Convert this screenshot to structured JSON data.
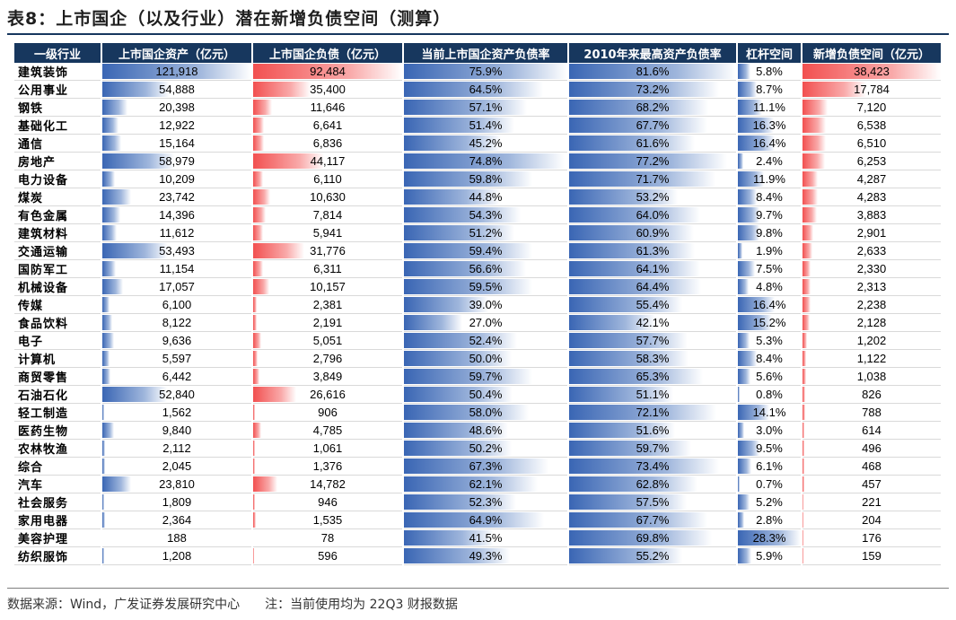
{
  "title": "表8：上市国企（以及行业）潜在新增负债空间（测算）",
  "colors": {
    "header_bg": "#17375e",
    "bar_blue": "#3a66b4",
    "bar_red": "#f25050"
  },
  "columns": [
    "一级行业",
    "上市国企资产（亿元）",
    "上市国企负债（亿元）",
    "当前上市国企资产负债率",
    "2010年来最高资产负债率",
    "杠杆空间",
    "新增负债空间（亿元）"
  ],
  "rows": [
    {
      "ind": "建筑装饰",
      "assets": "121,918",
      "debt": "92,484",
      "cur": "75.9%",
      "max": "81.6%",
      "lev": "5.8%",
      "new": "38,423"
    },
    {
      "ind": "公用事业",
      "assets": "54,888",
      "debt": "35,400",
      "cur": "64.5%",
      "max": "73.2%",
      "lev": "8.7%",
      "new": "17,784"
    },
    {
      "ind": "钢铁",
      "assets": "20,398",
      "debt": "11,646",
      "cur": "57.1%",
      "max": "68.2%",
      "lev": "11.1%",
      "new": "7,120"
    },
    {
      "ind": "基础化工",
      "assets": "12,922",
      "debt": "6,641",
      "cur": "51.4%",
      "max": "67.7%",
      "lev": "16.3%",
      "new": "6,538"
    },
    {
      "ind": "通信",
      "assets": "15,164",
      "debt": "6,836",
      "cur": "45.2%",
      "max": "61.6%",
      "lev": "16.4%",
      "new": "6,510"
    },
    {
      "ind": "房地产",
      "assets": "58,979",
      "debt": "44,117",
      "cur": "74.8%",
      "max": "77.2%",
      "lev": "2.4%",
      "new": "6,253"
    },
    {
      "ind": "电力设备",
      "assets": "10,209",
      "debt": "6,110",
      "cur": "59.8%",
      "max": "71.7%",
      "lev": "11.9%",
      "new": "4,287"
    },
    {
      "ind": "煤炭",
      "assets": "23,742",
      "debt": "10,630",
      "cur": "44.8%",
      "max": "53.2%",
      "lev": "8.4%",
      "new": "4,283"
    },
    {
      "ind": "有色金属",
      "assets": "14,396",
      "debt": "7,814",
      "cur": "54.3%",
      "max": "64.0%",
      "lev": "9.7%",
      "new": "3,883"
    },
    {
      "ind": "建筑材料",
      "assets": "11,612",
      "debt": "5,941",
      "cur": "51.2%",
      "max": "60.9%",
      "lev": "9.8%",
      "new": "2,901"
    },
    {
      "ind": "交通运输",
      "assets": "53,493",
      "debt": "31,776",
      "cur": "59.4%",
      "max": "61.3%",
      "lev": "1.9%",
      "new": "2,633"
    },
    {
      "ind": "国防军工",
      "assets": "11,154",
      "debt": "6,311",
      "cur": "56.6%",
      "max": "64.1%",
      "lev": "7.5%",
      "new": "2,330"
    },
    {
      "ind": "机械设备",
      "assets": "17,057",
      "debt": "10,157",
      "cur": "59.5%",
      "max": "64.4%",
      "lev": "4.8%",
      "new": "2,313"
    },
    {
      "ind": "传媒",
      "assets": "6,100",
      "debt": "2,381",
      "cur": "39.0%",
      "max": "55.4%",
      "lev": "16.4%",
      "new": "2,238"
    },
    {
      "ind": "食品饮料",
      "assets": "8,122",
      "debt": "2,191",
      "cur": "27.0%",
      "max": "42.1%",
      "lev": "15.2%",
      "new": "2,128"
    },
    {
      "ind": "电子",
      "assets": "9,636",
      "debt": "5,051",
      "cur": "52.4%",
      "max": "57.7%",
      "lev": "5.3%",
      "new": "1,202"
    },
    {
      "ind": "计算机",
      "assets": "5,597",
      "debt": "2,796",
      "cur": "50.0%",
      "max": "58.3%",
      "lev": "8.4%",
      "new": "1,122"
    },
    {
      "ind": "商贸零售",
      "assets": "6,442",
      "debt": "3,849",
      "cur": "59.7%",
      "max": "65.3%",
      "lev": "5.6%",
      "new": "1,038"
    },
    {
      "ind": "石油石化",
      "assets": "52,840",
      "debt": "26,616",
      "cur": "50.4%",
      "max": "51.1%",
      "lev": "0.8%",
      "new": "826"
    },
    {
      "ind": "轻工制造",
      "assets": "1,562",
      "debt": "906",
      "cur": "58.0%",
      "max": "72.1%",
      "lev": "14.1%",
      "new": "788"
    },
    {
      "ind": "医药生物",
      "assets": "9,840",
      "debt": "4,785",
      "cur": "48.6%",
      "max": "51.6%",
      "lev": "3.0%",
      "new": "614"
    },
    {
      "ind": "农林牧渔",
      "assets": "2,112",
      "debt": "1,061",
      "cur": "50.2%",
      "max": "59.7%",
      "lev": "9.5%",
      "new": "496"
    },
    {
      "ind": "综合",
      "assets": "2,045",
      "debt": "1,376",
      "cur": "67.3%",
      "max": "73.4%",
      "lev": "6.1%",
      "new": "468"
    },
    {
      "ind": "汽车",
      "assets": "23,810",
      "debt": "14,782",
      "cur": "62.1%",
      "max": "62.8%",
      "lev": "0.7%",
      "new": "457"
    },
    {
      "ind": "社会服务",
      "assets": "1,809",
      "debt": "946",
      "cur": "52.3%",
      "max": "57.5%",
      "lev": "5.2%",
      "new": "221"
    },
    {
      "ind": "家用电器",
      "assets": "2,364",
      "debt": "1,535",
      "cur": "64.9%",
      "max": "67.7%",
      "lev": "2.8%",
      "new": "204"
    },
    {
      "ind": "美容护理",
      "assets": "188",
      "debt": "78",
      "cur": "41.5%",
      "max": "69.8%",
      "lev": "28.3%",
      "new": "176"
    },
    {
      "ind": "纺织服饰",
      "assets": "1,208",
      "debt": "596",
      "cur": "49.3%",
      "max": "55.2%",
      "lev": "5.9%",
      "new": "159"
    }
  ],
  "source": "数据来源：Wind，广发证券发展研究中心　　注：当前使用均为 22Q3 财报数据"
}
